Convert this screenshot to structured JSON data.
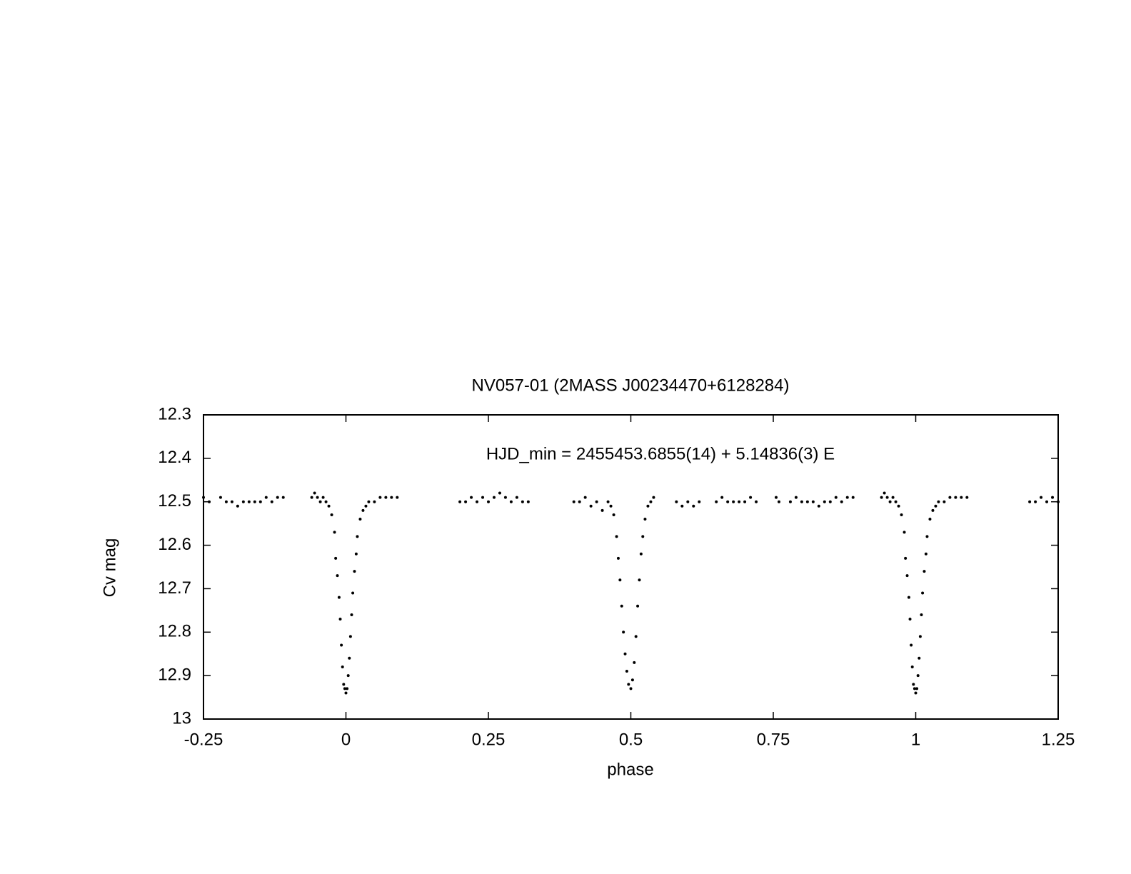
{
  "chart_data": {
    "type": "scatter",
    "title": "NV057-01 (2MASS J00234470+6128284)",
    "annotation": "HJD_min = 2455453.6855(14) + 5.14836(3) E",
    "x_label": "phase",
    "y_label": "Cv mag",
    "color": "#000000",
    "xlim": [
      -0.25,
      1.25
    ],
    "ylim": [
      13,
      12.3
    ],
    "xticks": [
      -0.25,
      0,
      0.25,
      0.5,
      0.75,
      1,
      1.25
    ],
    "yticks": [
      12.3,
      12.4,
      12.5,
      12.6,
      12.7,
      12.8,
      12.9,
      13
    ],
    "x": [
      -0.25,
      -0.24,
      -0.22,
      -0.21,
      -0.2,
      -0.19,
      -0.18,
      -0.17,
      -0.16,
      -0.15,
      -0.14,
      -0.13,
      -0.12,
      -0.11,
      -0.06,
      -0.055,
      -0.05,
      -0.045,
      -0.04,
      -0.035,
      -0.03,
      -0.025,
      -0.02,
      -0.018,
      -0.015,
      -0.012,
      -0.01,
      -0.008,
      -0.006,
      -0.004,
      -0.002,
      0,
      0.002,
      0.004,
      0.006,
      0.008,
      0.01,
      0.012,
      0.015,
      0.018,
      0.02,
      0.025,
      0.03,
      0.035,
      0.04,
      0.05,
      0.06,
      0.07,
      0.08,
      0.09,
      0.2,
      0.21,
      0.22,
      0.23,
      0.24,
      0.25,
      0.26,
      0.27,
      0.28,
      0.29,
      0.3,
      0.31,
      0.32,
      0.4,
      0.41,
      0.42,
      0.43,
      0.44,
      0.45,
      0.46,
      0.465,
      0.47,
      0.475,
      0.478,
      0.481,
      0.484,
      0.487,
      0.49,
      0.493,
      0.496,
      0.5,
      0.503,
      0.506,
      0.509,
      0.512,
      0.515,
      0.518,
      0.521,
      0.525,
      0.53,
      0.535,
      0.54,
      0.58,
      0.59,
      0.6,
      0.61,
      0.62,
      0.65,
      0.66,
      0.67,
      0.68,
      0.69,
      0.7,
      0.71,
      0.72,
      0.755,
      0.76,
      0.78,
      0.79,
      0.8,
      0.81,
      0.82,
      0.83,
      0.84,
      0.85,
      0.86,
      0.87,
      0.88,
      0.89,
      0.94,
      0.945,
      0.95,
      0.955,
      0.96,
      0.965,
      0.97,
      0.975,
      0.98,
      0.982,
      0.985,
      0.988,
      0.99,
      0.992,
      0.994,
      0.996,
      0.998,
      1,
      1.002,
      1.004,
      1.006,
      1.008,
      1.01,
      1.012,
      1.015,
      1.018,
      1.02,
      1.025,
      1.03,
      1.035,
      1.04,
      1.05,
      1.06,
      1.07,
      1.08,
      1.09,
      1.2,
      1.21,
      1.22,
      1.23,
      1.24,
      1.25
    ],
    "values": [
      12.49,
      12.5,
      12.49,
      12.5,
      12.5,
      12.51,
      12.5,
      12.5,
      12.5,
      12.5,
      12.49,
      12.5,
      12.49,
      12.49,
      12.49,
      12.48,
      12.49,
      12.5,
      12.49,
      12.5,
      12.51,
      12.53,
      12.57,
      12.63,
      12.67,
      12.72,
      12.77,
      12.83,
      12.88,
      12.92,
      12.93,
      12.94,
      12.93,
      12.9,
      12.86,
      12.81,
      12.76,
      12.71,
      12.66,
      12.62,
      12.58,
      12.54,
      12.52,
      12.51,
      12.5,
      12.5,
      12.49,
      12.49,
      12.49,
      12.49,
      12.5,
      12.5,
      12.49,
      12.5,
      12.49,
      12.5,
      12.49,
      12.48,
      12.49,
      12.5,
      12.49,
      12.5,
      12.5,
      12.5,
      12.5,
      12.49,
      12.51,
      12.5,
      12.52,
      12.5,
      12.51,
      12.53,
      12.58,
      12.63,
      12.68,
      12.74,
      12.8,
      12.85,
      12.89,
      12.92,
      12.93,
      12.91,
      12.87,
      12.81,
      12.74,
      12.68,
      12.62,
      12.58,
      12.54,
      12.51,
      12.5,
      12.49,
      12.5,
      12.51,
      12.5,
      12.51,
      12.5,
      12.5,
      12.49,
      12.5,
      12.5,
      12.5,
      12.5,
      12.49,
      12.5,
      12.49,
      12.5,
      12.5,
      12.49,
      12.5,
      12.5,
      12.5,
      12.51,
      12.5,
      12.5,
      12.49,
      12.5,
      12.49,
      12.49,
      12.49,
      12.48,
      12.49,
      12.5,
      12.49,
      12.5,
      12.51,
      12.53,
      12.57,
      12.63,
      12.67,
      12.72,
      12.77,
      12.83,
      12.88,
      12.92,
      12.93,
      12.94,
      12.93,
      12.9,
      12.86,
      12.81,
      12.76,
      12.71,
      12.66,
      12.62,
      12.58,
      12.54,
      12.52,
      12.51,
      12.5,
      12.5,
      12.49,
      12.49,
      12.49,
      12.49,
      12.5,
      12.5,
      12.49,
      12.5,
      12.49,
      12.5
    ]
  }
}
